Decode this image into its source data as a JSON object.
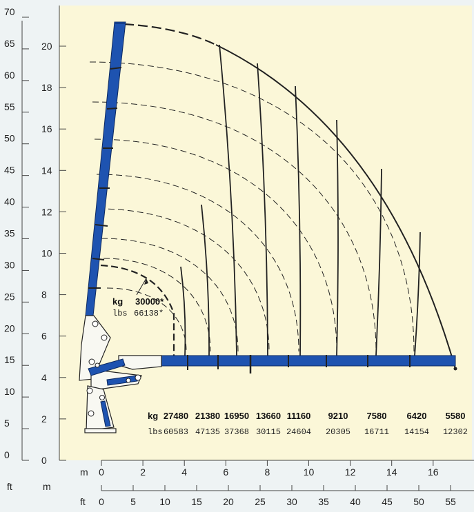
{
  "colors": {
    "paper": "#fbf7d8",
    "border": "#eef3f4",
    "boom_blue": "#1e53b0",
    "line": "#222222"
  },
  "axes": {
    "ft_left_unit": "ft",
    "m_left_unit": "m",
    "ft_left_ticks": [
      "0",
      "5",
      "10",
      "15",
      "20",
      "25",
      "30",
      "35",
      "40",
      "45",
      "50",
      "55",
      "60",
      "65",
      "70"
    ],
    "m_left_ticks": [
      "0",
      "2",
      "4",
      "6",
      "8",
      "10",
      "12",
      "14",
      "16",
      "18",
      "20"
    ],
    "m_bottom_unit": "m",
    "m_bottom_ticks": [
      "0",
      "2",
      "4",
      "6",
      "8",
      "10",
      "12",
      "14",
      "16"
    ],
    "ft_bottom_unit": "ft",
    "ft_bottom_ticks": [
      "0",
      "5",
      "10",
      "15",
      "20",
      "25",
      "30",
      "35",
      "40",
      "45",
      "50",
      "55"
    ]
  },
  "max_capacity": {
    "kg_label": "kg",
    "kg_value": "30000*",
    "lbs_label": "lbs",
    "lbs_value": "66138*"
  },
  "capacity_table": {
    "kg_label": "kg",
    "lbs_label": "lbs",
    "kg": [
      "27480",
      "21380",
      "16950",
      "13660",
      "11160",
      "9210",
      "7580",
      "6420",
      "5580"
    ],
    "lbs": [
      "60583",
      "47135",
      "37368",
      "30115",
      "24604",
      "20305",
      "16711",
      "14154",
      "12302"
    ]
  },
  "chart_data": {
    "type": "diagram",
    "description_units": {
      "x": "m",
      "y": "m"
    },
    "outreach_m": [
      3.9,
      5.1,
      6.6,
      8.1,
      9.6,
      11.5,
      13.3,
      15.2,
      16.7
    ],
    "max_height_m": 21.1,
    "max_reach_m": 17.2,
    "capacity_kg": [
      27480,
      21380,
      16950,
      13660,
      11160,
      9210,
      7580,
      6420,
      5580
    ],
    "capacity_lbs": [
      60583,
      47135,
      37368,
      30115,
      24604,
      20305,
      16711,
      14154,
      12302
    ],
    "max_capacity_kg": "30000*",
    "max_capacity_lbs": "66138*"
  }
}
